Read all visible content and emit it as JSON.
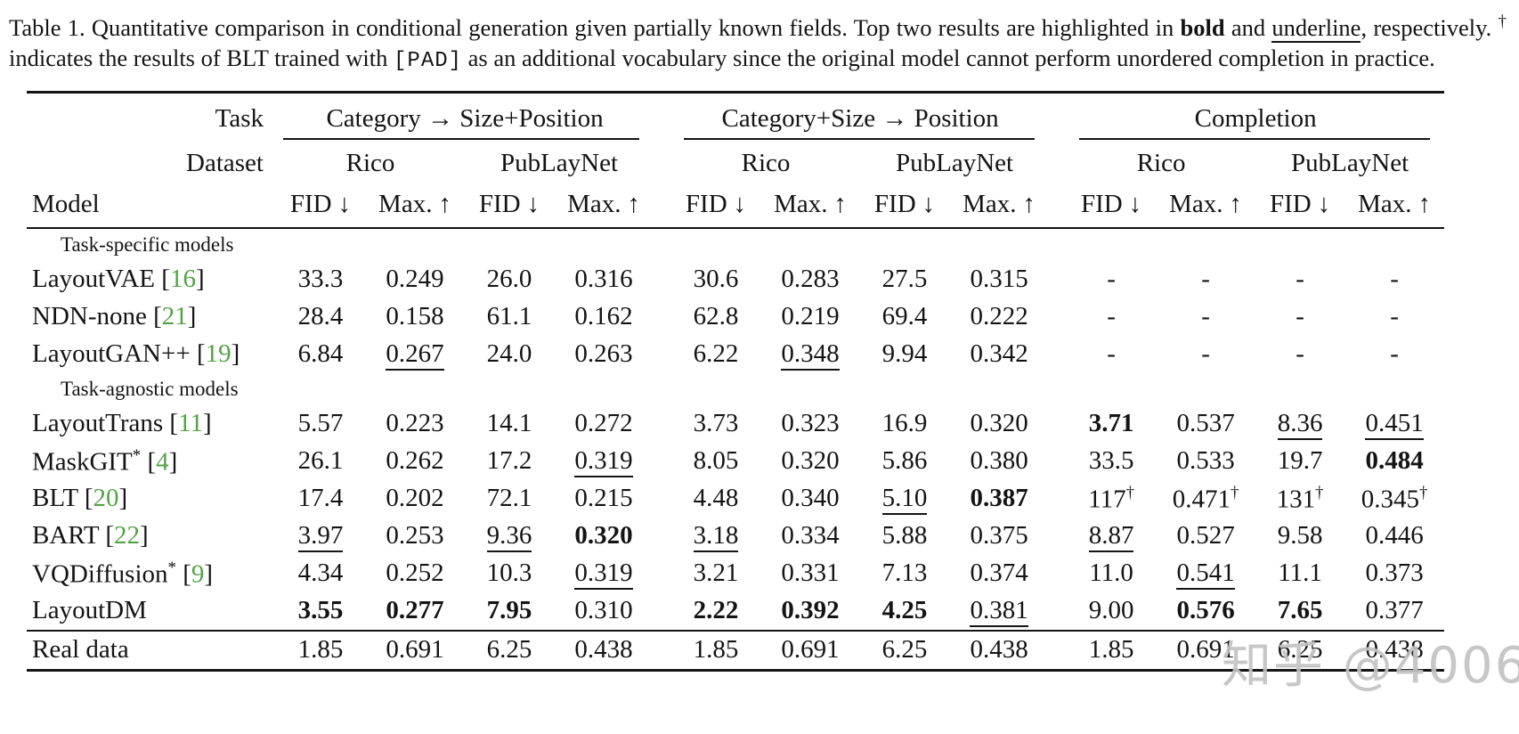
{
  "caption": {
    "label": "Table 1.",
    "text_before_bold": "Quantitative comparison in conditional generation given partially known fields. Top two results are highlighted in",
    "bold_word": "bold",
    "and_word": "and",
    "underline_word": "underline",
    "after_underline": ", respectively.",
    "dagger": "†",
    "dagger_text": "indicates the results of BLT trained with",
    "pad_token": "[PAD]",
    "tail": "as an additional vocabulary since the original model cannot perform unordered completion in practice."
  },
  "table": {
    "corner_task": "Task",
    "corner_dataset": "Dataset",
    "corner_model": "Model",
    "groups": [
      {
        "label": "Category → Size+Position"
      },
      {
        "label": "Category+Size → Position"
      },
      {
        "label": "Completion"
      }
    ],
    "datasets": [
      "Rico",
      "PubLayNet"
    ],
    "metrics": [
      {
        "label": "FID",
        "arrow": "↓"
      },
      {
        "label": "Max.",
        "arrow": "↑"
      }
    ],
    "sections": [
      {
        "label": "Task-specific models",
        "rows": [
          {
            "model": "LayoutVAE",
            "cite": "16",
            "cells": [
              {
                "v": "33.3"
              },
              {
                "v": "0.249"
              },
              {
                "v": "26.0"
              },
              {
                "v": "0.316"
              },
              {
                "v": "30.6"
              },
              {
                "v": "0.283"
              },
              {
                "v": "27.5"
              },
              {
                "v": "0.315"
              },
              {
                "v": "-"
              },
              {
                "v": "-"
              },
              {
                "v": "-"
              },
              {
                "v": "-"
              }
            ]
          },
          {
            "model": "NDN-none",
            "cite": "21",
            "cells": [
              {
                "v": "28.4"
              },
              {
                "v": "0.158"
              },
              {
                "v": "61.1"
              },
              {
                "v": "0.162"
              },
              {
                "v": "62.8"
              },
              {
                "v": "0.219"
              },
              {
                "v": "69.4"
              },
              {
                "v": "0.222"
              },
              {
                "v": "-"
              },
              {
                "v": "-"
              },
              {
                "v": "-"
              },
              {
                "v": "-"
              }
            ]
          },
          {
            "model": "LayoutGAN++",
            "cite": "19",
            "cells": [
              {
                "v": "6.84"
              },
              {
                "v": "0.267",
                "s": "u"
              },
              {
                "v": "24.0"
              },
              {
                "v": "0.263"
              },
              {
                "v": "6.22"
              },
              {
                "v": "0.348",
                "s": "u"
              },
              {
                "v": "9.94"
              },
              {
                "v": "0.342"
              },
              {
                "v": "-"
              },
              {
                "v": "-"
              },
              {
                "v": "-"
              },
              {
                "v": "-"
              }
            ]
          }
        ]
      },
      {
        "label": "Task-agnostic models",
        "rows": [
          {
            "model": "LayoutTrans",
            "cite": "11",
            "cells": [
              {
                "v": "5.57"
              },
              {
                "v": "0.223"
              },
              {
                "v": "14.1"
              },
              {
                "v": "0.272"
              },
              {
                "v": "3.73"
              },
              {
                "v": "0.323"
              },
              {
                "v": "16.9"
              },
              {
                "v": "0.320"
              },
              {
                "v": "3.71",
                "s": "b"
              },
              {
                "v": "0.537"
              },
              {
                "v": "8.36",
                "s": "u"
              },
              {
                "v": "0.451",
                "s": "u"
              }
            ]
          },
          {
            "model": "MaskGIT",
            "model_sup": "*",
            "cite": "4",
            "cells": [
              {
                "v": "26.1"
              },
              {
                "v": "0.262"
              },
              {
                "v": "17.2"
              },
              {
                "v": "0.319",
                "s": "u"
              },
              {
                "v": "8.05"
              },
              {
                "v": "0.320"
              },
              {
                "v": "5.86"
              },
              {
                "v": "0.380"
              },
              {
                "v": "33.5"
              },
              {
                "v": "0.533"
              },
              {
                "v": "19.7"
              },
              {
                "v": "0.484",
                "s": "b"
              }
            ]
          },
          {
            "model": "BLT",
            "cite": "20",
            "cells": [
              {
                "v": "17.4"
              },
              {
                "v": "0.202"
              },
              {
                "v": "72.1"
              },
              {
                "v": "0.215"
              },
              {
                "v": "4.48"
              },
              {
                "v": "0.340"
              },
              {
                "v": "5.10",
                "s": "u"
              },
              {
                "v": "0.387",
                "s": "b"
              },
              {
                "v": "117",
                "sup": "†"
              },
              {
                "v": "0.471",
                "sup": "†"
              },
              {
                "v": "131",
                "sup": "†"
              },
              {
                "v": "0.345",
                "sup": "†"
              }
            ]
          },
          {
            "model": "BART",
            "cite": "22",
            "cells": [
              {
                "v": "3.97",
                "s": "u"
              },
              {
                "v": "0.253"
              },
              {
                "v": "9.36",
                "s": "u"
              },
              {
                "v": "0.320",
                "s": "b"
              },
              {
                "v": "3.18",
                "s": "u"
              },
              {
                "v": "0.334"
              },
              {
                "v": "5.88"
              },
              {
                "v": "0.375"
              },
              {
                "v": "8.87",
                "s": "u"
              },
              {
                "v": "0.527"
              },
              {
                "v": "9.58"
              },
              {
                "v": "0.446"
              }
            ]
          },
          {
            "model": "VQDiffusion",
            "model_sup": "*",
            "cite": "9",
            "cells": [
              {
                "v": "4.34"
              },
              {
                "v": "0.252"
              },
              {
                "v": "10.3"
              },
              {
                "v": "0.319",
                "s": "u"
              },
              {
                "v": "3.21"
              },
              {
                "v": "0.331"
              },
              {
                "v": "7.13"
              },
              {
                "v": "0.374"
              },
              {
                "v": "11.0"
              },
              {
                "v": "0.541",
                "s": "u"
              },
              {
                "v": "11.1"
              },
              {
                "v": "0.373"
              }
            ]
          },
          {
            "model": "LayoutDM",
            "cells": [
              {
                "v": "3.55",
                "s": "b"
              },
              {
                "v": "0.277",
                "s": "b"
              },
              {
                "v": "7.95",
                "s": "b"
              },
              {
                "v": "0.310"
              },
              {
                "v": "2.22",
                "s": "b"
              },
              {
                "v": "0.392",
                "s": "b"
              },
              {
                "v": "4.25",
                "s": "b"
              },
              {
                "v": "0.381",
                "s": "u"
              },
              {
                "v": "9.00"
              },
              {
                "v": "0.576",
                "s": "b"
              },
              {
                "v": "7.65",
                "s": "b"
              },
              {
                "v": "0.377"
              }
            ]
          }
        ]
      }
    ],
    "footer_row": {
      "model": "Real data",
      "cells": [
        {
          "v": "1.85"
        },
        {
          "v": "0.691"
        },
        {
          "v": "6.25"
        },
        {
          "v": "0.438"
        },
        {
          "v": "1.85"
        },
        {
          "v": "0.691"
        },
        {
          "v": "6.25"
        },
        {
          "v": "0.438"
        },
        {
          "v": "1.85"
        },
        {
          "v": "0.691"
        },
        {
          "v": "6.25"
        },
        {
          "v": "0.438"
        }
      ]
    }
  },
  "watermark": "知乎 @4006",
  "colors": {
    "citation_green": "#53a345",
    "text": "#141414",
    "watermark_gray": "#c3c3c3"
  }
}
